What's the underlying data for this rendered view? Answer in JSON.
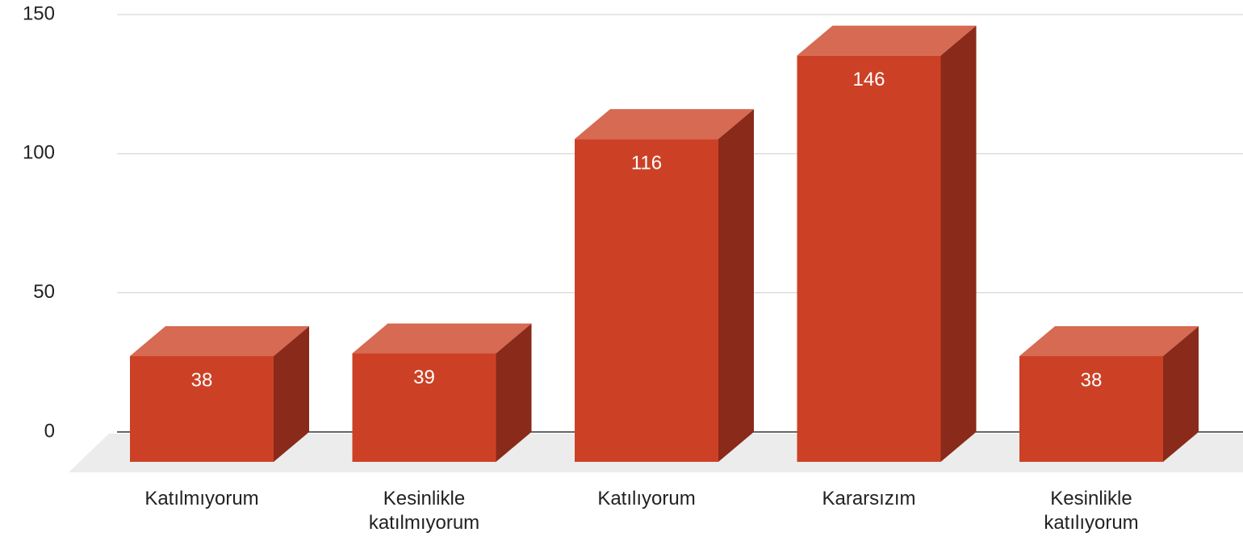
{
  "chart_data": {
    "type": "bar",
    "categories": [
      "Katılmıyorum",
      "Kesinlikle katılmıyorum",
      "Katılıyorum",
      "Kararsızım",
      "Kesinlikle katılıyorum"
    ],
    "values": [
      38,
      39,
      116,
      146,
      38
    ],
    "color": "#cc4125",
    "ylim": [
      0,
      150
    ],
    "yticks": [
      0,
      50,
      100,
      150
    ],
    "grid": true
  }
}
